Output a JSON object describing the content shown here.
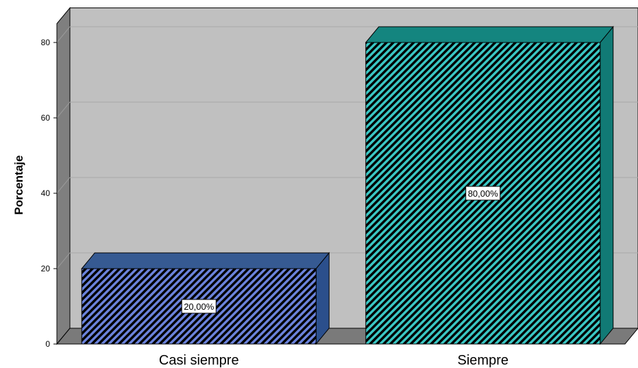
{
  "chart_data": {
    "type": "bar",
    "style": "3d-hatched",
    "ylabel": "Porcentaje",
    "ylim": [
      0,
      85
    ],
    "yticks": [
      0,
      20,
      40,
      60,
      80
    ],
    "grid": true,
    "categories": [
      "Casi siempre",
      "Siempre"
    ],
    "values": [
      20,
      80
    ],
    "data_labels": [
      "20,00%",
      "80,00%"
    ],
    "colors": {
      "bar_fronts": [
        "#6b83dc",
        "#3ac7c4"
      ],
      "bar_tops": [
        "#365a92",
        "#14857f"
      ],
      "bar_sides": [
        "#2b4f8c",
        "#117a75"
      ],
      "plot_back": "#c0c0c0",
      "plot_side": "#7f7f7f",
      "plot_floor": "#7a7a7a",
      "gridline": "#a8a8a8",
      "hatch": "#000000"
    }
  }
}
